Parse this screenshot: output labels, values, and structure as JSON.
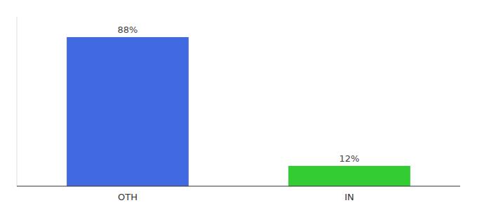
{
  "chart_data": {
    "type": "bar",
    "categories": [
      "OTH",
      "IN"
    ],
    "values": [
      88,
      12
    ],
    "value_labels": [
      "88%",
      "12%"
    ],
    "colors": [
      "#4169e1",
      "#33cc33"
    ],
    "ylim": [
      0,
      100
    ],
    "data_labels": true,
    "tick_labels": "x"
  }
}
